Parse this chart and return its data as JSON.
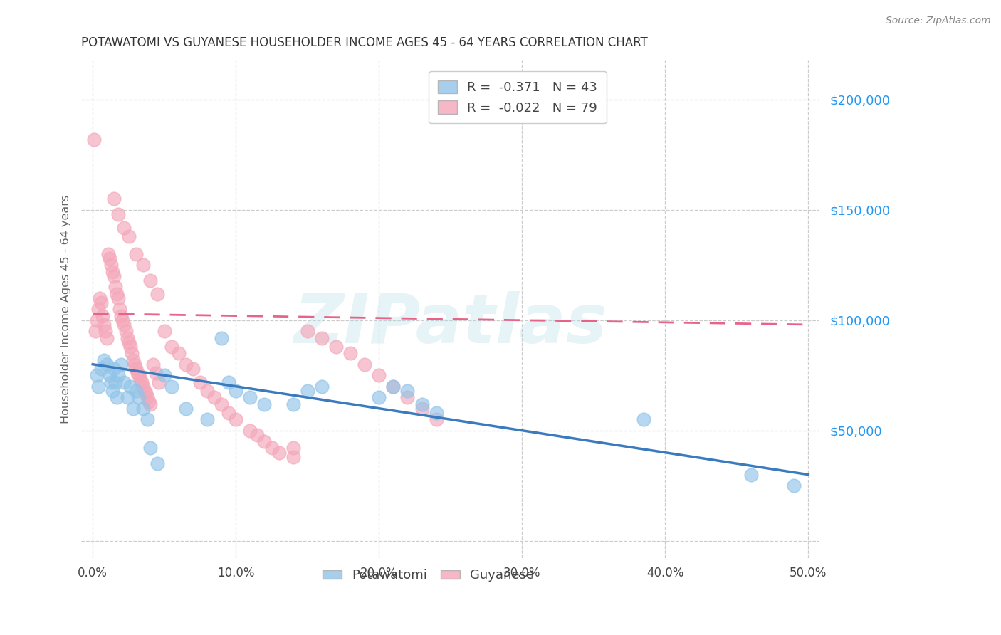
{
  "title": "POTAWATOMI VS GUYANESE HOUSEHOLDER INCOME AGES 45 - 64 YEARS CORRELATION CHART",
  "source": "Source: ZipAtlas.com",
  "ylabel": "Householder Income Ages 45 - 64 years",
  "blue_color": "#91c4e8",
  "pink_color": "#f4a7b9",
  "blue_line_color": "#3a7abf",
  "pink_line_color": "#e8638a",
  "watermark": "ZIPatlas",
  "legend_blue_text": "R = ",
  "legend_blue_r": "-0.371",
  "legend_blue_n": "N = 43",
  "legend_pink_text": "R = ",
  "legend_pink_r": "-0.022",
  "legend_pink_n": "N = 79",
  "blue_scatter_x": [
    0.003,
    0.004,
    0.006,
    0.008,
    0.01,
    0.012,
    0.013,
    0.014,
    0.015,
    0.016,
    0.017,
    0.018,
    0.02,
    0.022,
    0.024,
    0.026,
    0.028,
    0.03,
    0.032,
    0.035,
    0.038,
    0.04,
    0.045,
    0.05,
    0.055,
    0.065,
    0.08,
    0.09,
    0.095,
    0.1,
    0.11,
    0.12,
    0.14,
    0.15,
    0.16,
    0.2,
    0.21,
    0.22,
    0.23,
    0.24,
    0.385,
    0.46,
    0.49
  ],
  "blue_scatter_y": [
    75000,
    70000,
    78000,
    82000,
    80000,
    75000,
    72000,
    68000,
    78000,
    72000,
    65000,
    75000,
    80000,
    72000,
    65000,
    70000,
    60000,
    68000,
    65000,
    60000,
    55000,
    42000,
    35000,
    75000,
    70000,
    60000,
    55000,
    92000,
    72000,
    68000,
    65000,
    62000,
    62000,
    68000,
    70000,
    65000,
    70000,
    68000,
    62000,
    58000,
    55000,
    30000,
    25000
  ],
  "pink_scatter_x": [
    0.001,
    0.002,
    0.003,
    0.004,
    0.005,
    0.006,
    0.007,
    0.008,
    0.009,
    0.01,
    0.011,
    0.012,
    0.013,
    0.014,
    0.015,
    0.016,
    0.017,
    0.018,
    0.019,
    0.02,
    0.021,
    0.022,
    0.023,
    0.024,
    0.025,
    0.026,
    0.027,
    0.028,
    0.029,
    0.03,
    0.031,
    0.032,
    0.033,
    0.034,
    0.035,
    0.036,
    0.037,
    0.038,
    0.039,
    0.04,
    0.042,
    0.044,
    0.046,
    0.05,
    0.055,
    0.06,
    0.065,
    0.07,
    0.075,
    0.08,
    0.085,
    0.09,
    0.095,
    0.1,
    0.11,
    0.115,
    0.12,
    0.125,
    0.13,
    0.14,
    0.15,
    0.16,
    0.17,
    0.18,
    0.19,
    0.2,
    0.21,
    0.22,
    0.23,
    0.24,
    0.015,
    0.018,
    0.022,
    0.025,
    0.03,
    0.035,
    0.04,
    0.045,
    0.14
  ],
  "pink_scatter_y": [
    182000,
    95000,
    100000,
    105000,
    110000,
    108000,
    102000,
    98000,
    95000,
    92000,
    130000,
    128000,
    125000,
    122000,
    120000,
    115000,
    112000,
    110000,
    105000,
    102000,
    100000,
    98000,
    95000,
    92000,
    90000,
    88000,
    85000,
    82000,
    80000,
    78000,
    76000,
    75000,
    73000,
    72000,
    70000,
    68000,
    67000,
    65000,
    63000,
    62000,
    80000,
    76000,
    72000,
    95000,
    88000,
    85000,
    80000,
    78000,
    72000,
    68000,
    65000,
    62000,
    58000,
    55000,
    50000,
    48000,
    45000,
    42000,
    40000,
    38000,
    95000,
    92000,
    88000,
    85000,
    80000,
    75000,
    70000,
    65000,
    60000,
    55000,
    155000,
    148000,
    142000,
    138000,
    130000,
    125000,
    118000,
    112000,
    42000
  ]
}
